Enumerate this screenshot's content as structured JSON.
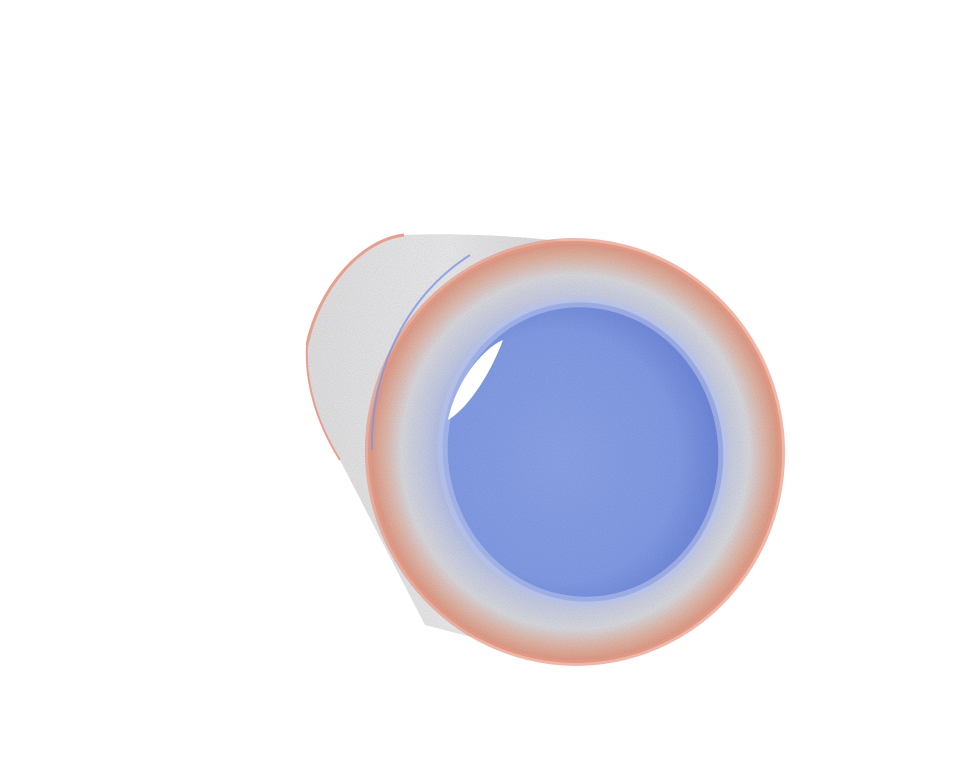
{
  "scene": {
    "subject": "hollow-cylinder-particle-render",
    "colors": {
      "background": "#ffffff",
      "outer_shell": "#dcdcdc",
      "outer_shell_highlight": "#f0f0f0",
      "rim_outer": "#e8a58f",
      "rim_mid": "#d9dbe6",
      "rim_inner": "#a9b9ee",
      "interior": "#8ea6ea",
      "interior_deep": "#6f8be0",
      "edge_blue": "#7f95e6",
      "edge_red": "#e89a8a"
    }
  }
}
